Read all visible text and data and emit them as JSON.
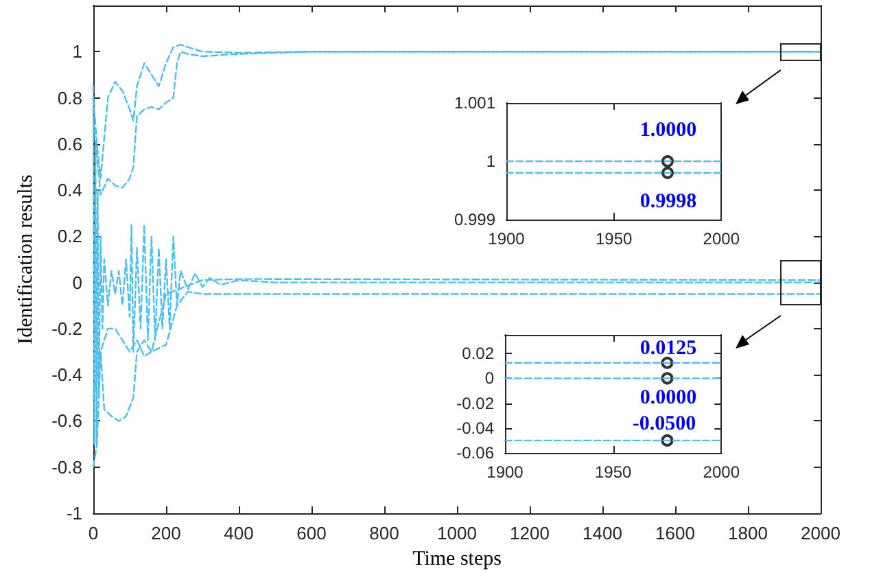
{
  "chart_data": [
    {
      "type": "line",
      "xlabel": "Time steps",
      "ylabel": "Identification results",
      "xlim": [
        0,
        2000
      ],
      "xticks": [
        0,
        200,
        400,
        600,
        800,
        1000,
        1200,
        1400,
        1600,
        1800,
        2000
      ],
      "ylim": [
        -1,
        1.2
      ],
      "yticks": [
        -1,
        -0.8,
        -0.6,
        -0.4,
        -0.2,
        0,
        0.2,
        0.4,
        0.6,
        0.8,
        1
      ],
      "line_style": "dashed",
      "grid": false,
      "series": [
        {
          "color": "#4dbeee",
          "x": [
            0,
            10,
            20,
            40,
            60,
            80,
            100,
            110,
            120,
            140,
            160,
            180,
            200,
            220,
            240,
            260,
            300,
            400,
            600,
            1000,
            2000
          ],
          "values": [
            0.8,
            0.6,
            0.45,
            0.8,
            0.87,
            0.83,
            0.75,
            0.7,
            0.85,
            0.95,
            0.9,
            0.85,
            0.95,
            1.02,
            1.03,
            1.02,
            1.0,
            0.995,
            1.0,
            1.0,
            1.0
          ]
        },
        {
          "color": "#4dbeee",
          "x": [
            0,
            10,
            20,
            40,
            60,
            80,
            100,
            110,
            120,
            140,
            160,
            180,
            200,
            220,
            230,
            240,
            260,
            300,
            400,
            600,
            2000
          ],
          "values": [
            0.7,
            0.55,
            0.38,
            0.45,
            0.42,
            0.41,
            0.45,
            0.5,
            0.72,
            0.75,
            0.76,
            0.75,
            0.78,
            0.8,
            0.95,
            1.0,
            0.99,
            0.98,
            0.99,
            1.0,
            1.0
          ]
        },
        {
          "color": "#4dbeee",
          "x": [
            0,
            10,
            20,
            30,
            50,
            70,
            90,
            110,
            120,
            140,
            160,
            200,
            230,
            260,
            300,
            2000
          ],
          "values": [
            -0.8,
            -0.7,
            -0.3,
            -0.55,
            -0.58,
            -0.6,
            -0.58,
            -0.5,
            -0.3,
            -0.25,
            -0.3,
            -0.27,
            -0.1,
            -0.04,
            -0.05,
            -0.05
          ]
        },
        {
          "color": "#4dbeee",
          "x": [
            0,
            20,
            40,
            60,
            80,
            100,
            120,
            140,
            160,
            200,
            300,
            400,
            2000
          ],
          "values": [
            -0.5,
            -0.3,
            -0.2,
            -0.2,
            -0.25,
            -0.3,
            -0.25,
            -0.32,
            -0.3,
            -0.05,
            0.01,
            0.015,
            0.01
          ]
        },
        {
          "color": "#4dbeee",
          "x": [
            0,
            3,
            6,
            9,
            12,
            15,
            20,
            25,
            30,
            40,
            50,
            60,
            70,
            80,
            90,
            100,
            105,
            110,
            120,
            130,
            140,
            150,
            160,
            170,
            180,
            190,
            200,
            210,
            220,
            230,
            240,
            260,
            280,
            300,
            320,
            350,
            400,
            500,
            2000
          ],
          "values": [
            0.85,
            -0.7,
            0.6,
            -0.7,
            0.4,
            -0.5,
            0.2,
            -0.2,
            0.1,
            -0.1,
            0.05,
            -0.05,
            0.05,
            -0.1,
            0.1,
            -0.15,
            0.25,
            -0.3,
            0.15,
            -0.2,
            0.25,
            -0.25,
            0.2,
            -0.25,
            0.15,
            -0.2,
            0.1,
            -0.2,
            0.2,
            -0.1,
            0.05,
            -0.03,
            0.04,
            -0.02,
            0.02,
            -0.01,
            0.01,
            0,
            0
          ]
        }
      ]
    },
    {
      "type": "line",
      "xlim": [
        1900,
        2000
      ],
      "xticks": [
        1900,
        1950,
        2000
      ],
      "ylim": [
        0.999,
        1.001
      ],
      "yticks": [
        0.999,
        1,
        1.001
      ],
      "line_style": "dashed",
      "grid": false,
      "series": [
        {
          "color": "#4dbeee",
          "x": [
            1900,
            2000
          ],
          "values": [
            1.0,
            1.0
          ]
        },
        {
          "color": "#4dbeee",
          "x": [
            1900,
            2000
          ],
          "values": [
            0.9998,
            0.9998
          ]
        },
        {
          "type": "scatter",
          "marker": "circle",
          "color": "#000000",
          "x": [
            1975,
            1975
          ],
          "values": [
            1.0,
            0.9998
          ]
        }
      ],
      "annotations": [
        "1.0000",
        "0.9998"
      ]
    },
    {
      "type": "line",
      "xlim": [
        1900,
        2000
      ],
      "xticks": [
        1900,
        1950,
        2000
      ],
      "ylim": [
        -0.06,
        0.035
      ],
      "yticks": [
        -0.06,
        -0.04,
        -0.02,
        0,
        0.02
      ],
      "line_style": "dashed",
      "grid": false,
      "series": [
        {
          "color": "#4dbeee",
          "x": [
            1900,
            2000
          ],
          "values": [
            0.0125,
            0.0125
          ]
        },
        {
          "color": "#4dbeee",
          "x": [
            1900,
            2000
          ],
          "values": [
            0,
            0
          ]
        },
        {
          "color": "#4dbeee",
          "x": [
            1900,
            2000
          ],
          "values": [
            -0.05,
            -0.05
          ]
        },
        {
          "type": "scatter",
          "marker": "circle",
          "color": "#000000",
          "x": [
            1975,
            1975,
            1975
          ],
          "values": [
            0.0125,
            0,
            -0.05
          ]
        }
      ],
      "annotations": [
        "0.0125",
        "0.0000",
        "-0.0500"
      ]
    }
  ]
}
